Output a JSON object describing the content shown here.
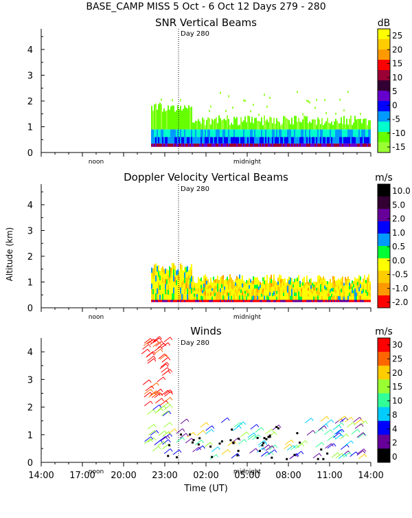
{
  "header": {
    "title": "BASE_CAMP MISS    5 Oct -   6 Oct 12 Days 279 - 280"
  },
  "chart_data": [
    {
      "type": "heatmap",
      "title": "SNR Vertical Beams",
      "ylabel": "Altitude (km)",
      "ylim": [
        0,
        4.8
      ],
      "yticks": [
        "0",
        "1",
        "2",
        "3",
        "4"
      ],
      "xlim_hours": [
        0,
        24
      ],
      "data_start_hour": 8,
      "day_marker": {
        "label": "Day 280",
        "hour": 10
      },
      "axis_annotations": [
        {
          "label": "noon",
          "hour": 4
        },
        {
          "label": "midnight",
          "hour": 15
        }
      ],
      "colorbar": {
        "unit": "dB",
        "labels": [
          "25",
          "20",
          "15",
          "10",
          "5",
          "0",
          "-5",
          "-10",
          "-15"
        ],
        "colors": [
          "#ffff00",
          "#ffcc00",
          "#ff9900",
          "#ff0000",
          "#990033",
          "#330033",
          "#6600cc",
          "#0000ff",
          "#0099ff",
          "#00ffcc",
          "#66ff00",
          "#99ff33"
        ]
      }
    },
    {
      "type": "heatmap",
      "title": "Doppler Velocity Vertical Beams",
      "ylabel": "Altitude (km)",
      "ylim": [
        0,
        4.8
      ],
      "yticks": [
        "0",
        "1",
        "2",
        "3",
        "4"
      ],
      "xlim_hours": [
        0,
        24
      ],
      "data_start_hour": 8,
      "day_marker": {
        "label": "Day 280",
        "hour": 10
      },
      "axis_annotations": [
        {
          "label": "noon",
          "hour": 4
        },
        {
          "label": "midnight",
          "hour": 15
        }
      ],
      "colorbar": {
        "unit": "m/s",
        "labels": [
          "10.0",
          "5.0",
          "2.0",
          "1.0",
          "0.5",
          "0.0",
          "-0.5",
          "-1.0",
          "-2.0"
        ],
        "colors": [
          "#000000",
          "#330033",
          "#660099",
          "#0000ff",
          "#0099ff",
          "#00ff33",
          "#ffff00",
          "#ffcc00",
          "#ff9900",
          "#ff0000"
        ]
      }
    },
    {
      "type": "scatter",
      "title": "Winds",
      "xlabel": "Time (UT)",
      "ylabel": "Altitude (km)",
      "ylim": [
        0,
        4.5
      ],
      "yticks": [
        "0",
        "1",
        "2",
        "3",
        "4"
      ],
      "xlim_hours": [
        0,
        24
      ],
      "xticks": [
        "14:00",
        "17:00",
        "20:00",
        "23:00",
        "02:00",
        "05:00",
        "08:00",
        "11:00",
        "14:00"
      ],
      "day_marker": {
        "label": "Day 280",
        "hour": 10
      },
      "axis_annotations": [
        {
          "label": "noon",
          "hour": 4
        },
        {
          "label": "midnight",
          "hour": 15
        }
      ],
      "colorbar": {
        "unit": "m/s",
        "labels": [
          "30",
          "25",
          "20",
          "15",
          "10",
          "8",
          "4",
          "2",
          "0"
        ],
        "colors": [
          "#ff0000",
          "#ff6600",
          "#ffcc00",
          "#99ff33",
          "#33ff99",
          "#00ccff",
          "#0000ff",
          "#660099",
          "#000000"
        ]
      }
    }
  ]
}
